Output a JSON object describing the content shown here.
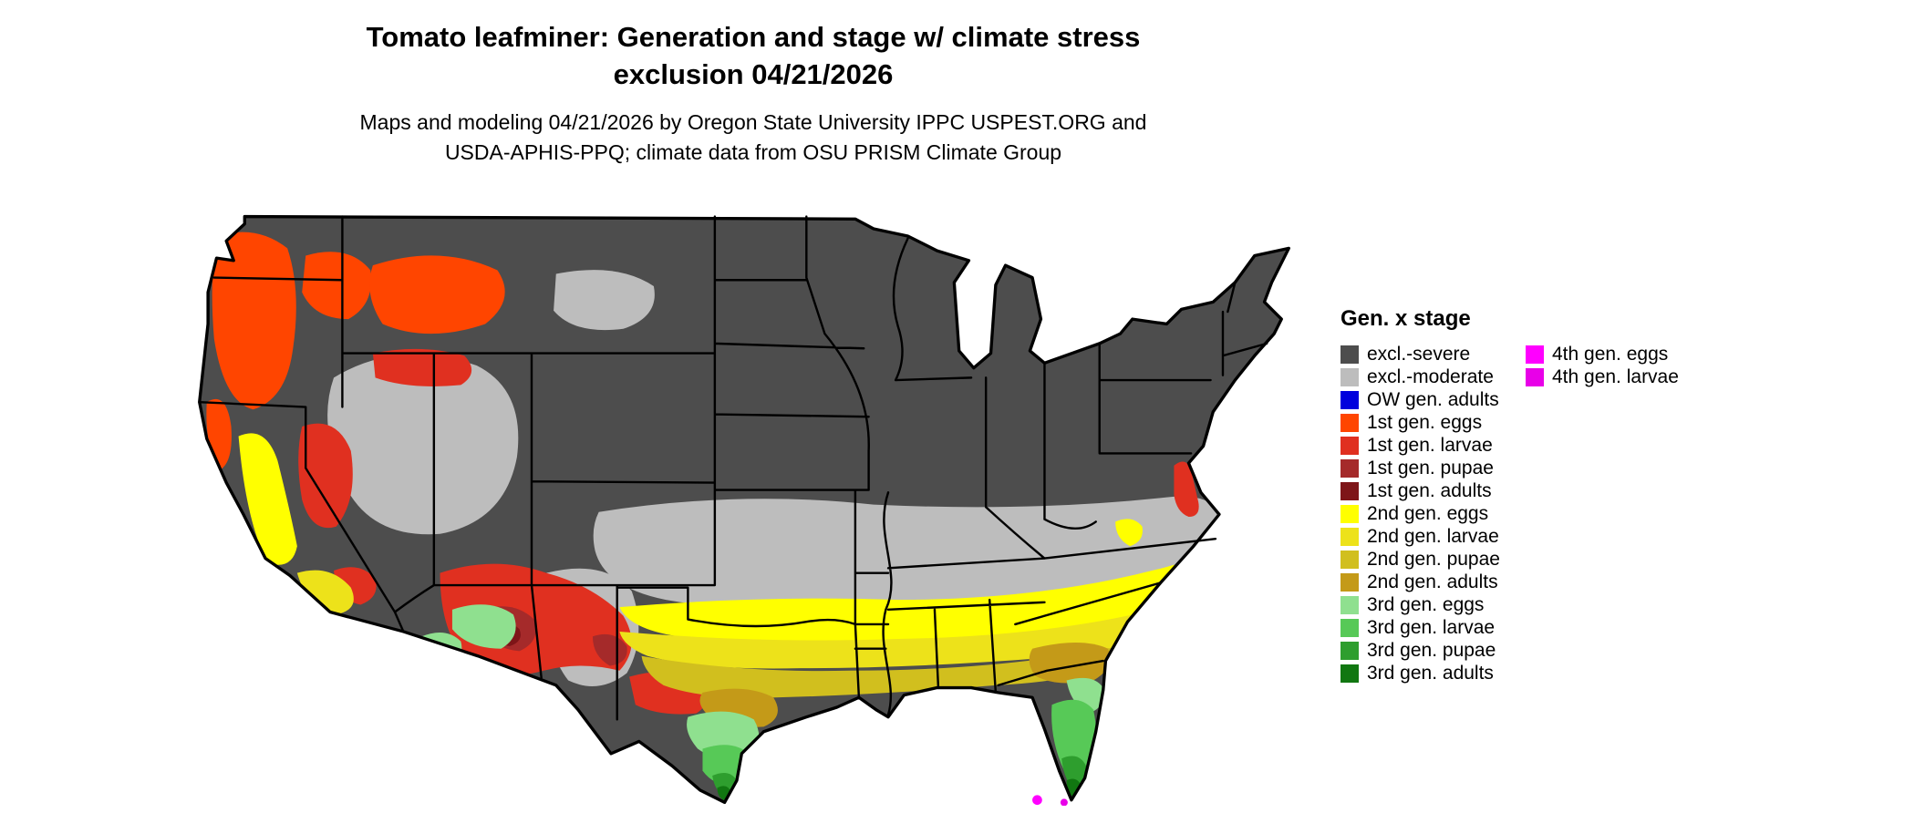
{
  "title": {
    "line1": "Tomato leafminer: Generation and stage w/ climate stress",
    "line2": "exclusion 04/21/2026"
  },
  "subtitle": {
    "line1": "Maps and modeling 04/21/2026 by Oregon State University IPPC USPEST.ORG and",
    "line2": "USDA-APHIS-PPQ; climate data from OSU PRISM Climate Group"
  },
  "legend": {
    "title": "Gen. x stage",
    "column1": [
      {
        "label": "excl.-severe",
        "color": "#4D4D4D"
      },
      {
        "label": "excl.-moderate",
        "color": "#BDBDBD"
      },
      {
        "label": "OW gen. adults",
        "color": "#0000DD"
      },
      {
        "label": "1st gen. eggs",
        "color": "#FF4500"
      },
      {
        "label": "1st gen. larvae",
        "color": "#E03020"
      },
      {
        "label": "1st gen. pupae",
        "color": "#A52A2A"
      },
      {
        "label": "1st gen. adults",
        "color": "#7E1518"
      },
      {
        "label": "2nd gen. eggs",
        "color": "#FFFF00"
      },
      {
        "label": "2nd gen. larvae",
        "color": "#EDE21A"
      },
      {
        "label": "2nd gen. pupae",
        "color": "#D1BF1E"
      },
      {
        "label": "2nd gen. adults",
        "color": "#C49A18"
      },
      {
        "label": "3rd gen. eggs",
        "color": "#8FE08F"
      },
      {
        "label": "3rd gen. larvae",
        "color": "#57C957"
      },
      {
        "label": "3rd gen. pupae",
        "color": "#2E9E2E"
      },
      {
        "label": "3rd gen. adults",
        "color": "#117711"
      }
    ],
    "column2": [
      {
        "label": "4th gen. eggs",
        "color": "#FF00FF"
      },
      {
        "label": "4th gen. larvae",
        "color": "#E800E8"
      }
    ]
  },
  "map": {
    "colors": {
      "excl_severe": "#4D4D4D",
      "excl_moderate": "#BDBDBD",
      "ow_adults": "#0000DD",
      "g1_eggs": "#FF4500",
      "g1_larvae": "#E03020",
      "g1_pupae": "#A52A2A",
      "g1_adults": "#7E1518",
      "g2_eggs": "#FFFF00",
      "g2_larvae": "#EDE21A",
      "g2_pupae": "#D1BF1E",
      "g2_adults": "#C49A18",
      "g3_eggs": "#8FE08F",
      "g3_larvae": "#57C957",
      "g3_pupae": "#2E9E2E",
      "g3_adults": "#117711",
      "g4_eggs": "#FF00FF",
      "g4_larvae": "#E800E8",
      "outline": "#000000"
    }
  }
}
